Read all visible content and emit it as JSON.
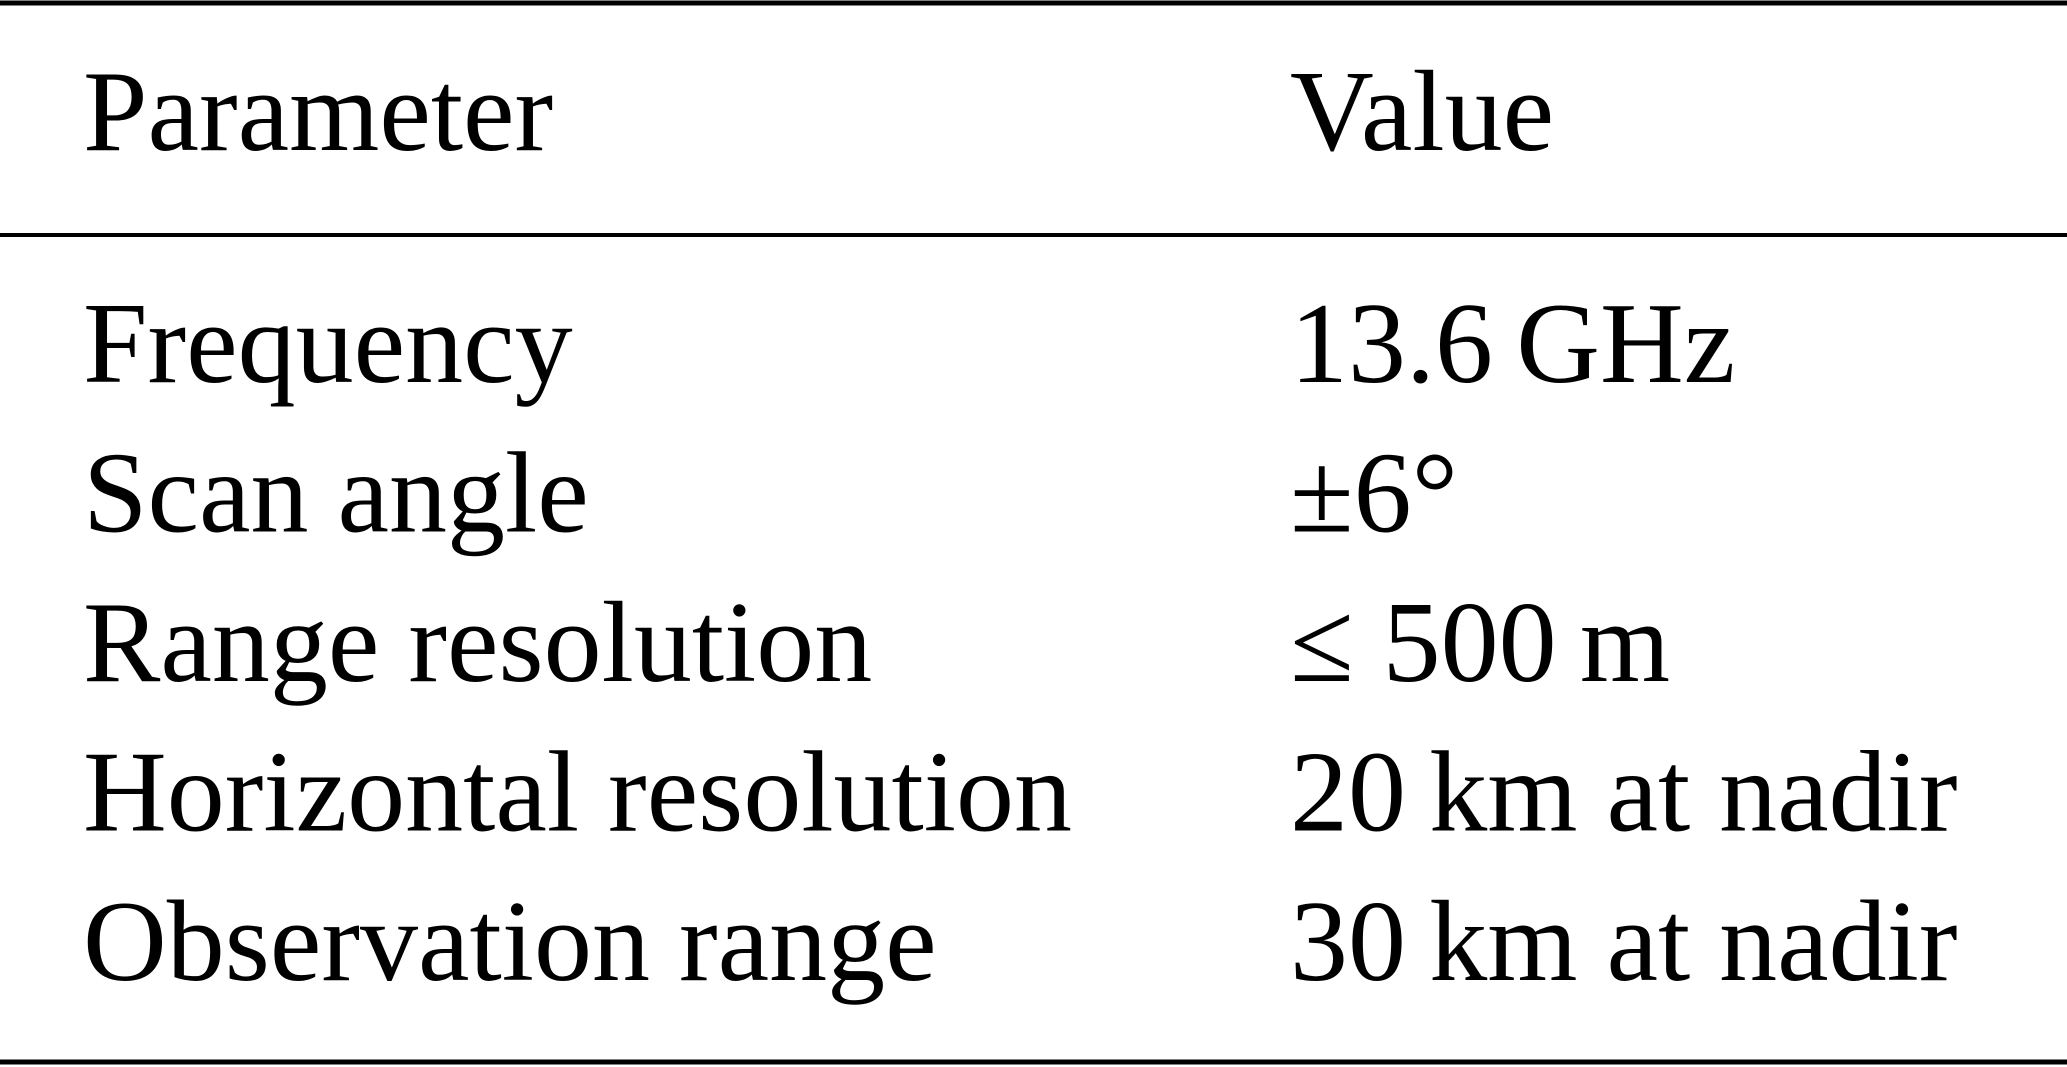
{
  "table": {
    "header": [
      "Parameter",
      "Value"
    ],
    "rows": [
      [
        "Frequency",
        "13.6 GHz"
      ],
      [
        "Scan angle",
        "±6°"
      ],
      [
        "Range resolution",
        "≤ 500 m"
      ],
      [
        "Horizontal resolution",
        "20 km at nadir"
      ],
      [
        "Observation range",
        "30 km at nadir"
      ]
    ]
  }
}
